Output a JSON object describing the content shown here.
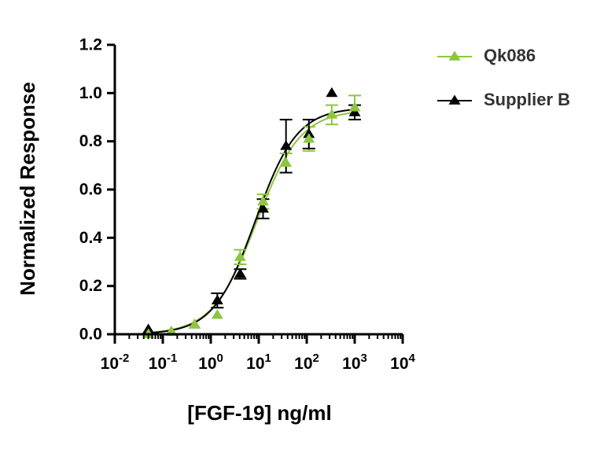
{
  "chart_data": {
    "type": "scatter",
    "title": "",
    "xlabel": "[FGF-19] ng/ml",
    "ylabel": "Normalized Response",
    "xscale": "log",
    "xlim": [
      0.01,
      10000
    ],
    "ylim": [
      0,
      1.2
    ],
    "grid": false,
    "legend_position": "top-right",
    "x_ticks": [
      {
        "value": 0.01,
        "base": "10",
        "exp": "-2"
      },
      {
        "value": 0.1,
        "base": "10",
        "exp": "-1"
      },
      {
        "value": 1,
        "base": "10",
        "exp": "0"
      },
      {
        "value": 10,
        "base": "10",
        "exp": "1"
      },
      {
        "value": 100,
        "base": "10",
        "exp": "2"
      },
      {
        "value": 1000,
        "base": "10",
        "exp": "3"
      },
      {
        "value": 10000,
        "base": "10",
        "exp": "4"
      }
    ],
    "y_ticks": [
      {
        "value": 0.0,
        "label": "0.0"
      },
      {
        "value": 0.2,
        "label": "0.2"
      },
      {
        "value": 0.4,
        "label": "0.4"
      },
      {
        "value": 0.6,
        "label": "0.6"
      },
      {
        "value": 0.8,
        "label": "0.8"
      },
      {
        "value": 1.0,
        "label": "1.0"
      },
      {
        "value": 1.2,
        "label": "1.2"
      }
    ],
    "series": [
      {
        "name": "Qk086",
        "color": "#8dc63f",
        "marker": "triangle",
        "fit": {
          "bottom": 0.0,
          "top": 0.93,
          "ec50": 9.0,
          "hill": 0.95
        },
        "points": [
          {
            "x": 0.05,
            "y": 0.0,
            "err": 0.0
          },
          {
            "x": 0.15,
            "y": 0.01,
            "err": 0.0
          },
          {
            "x": 0.46,
            "y": 0.04,
            "err": 0.0
          },
          {
            "x": 1.37,
            "y": 0.08,
            "err": 0.0
          },
          {
            "x": 4.1,
            "y": 0.32,
            "err": 0.03
          },
          {
            "x": 12.3,
            "y": 0.55,
            "err": 0.03
          },
          {
            "x": 37,
            "y": 0.71,
            "err": 0.04
          },
          {
            "x": 111,
            "y": 0.81,
            "err": 0.05
          },
          {
            "x": 333,
            "y": 0.91,
            "err": 0.04
          },
          {
            "x": 1000,
            "y": 0.94,
            "err": 0.05
          }
        ]
      },
      {
        "name": "Supplier B",
        "color": "#000000",
        "marker": "triangle",
        "fit": {
          "bottom": 0.0,
          "top": 0.94,
          "ec50": 8.5,
          "hill": 1.0
        },
        "points": [
          {
            "x": 0.05,
            "y": 0.02,
            "err": 0.0
          },
          {
            "x": 0.15,
            "y": 0.01,
            "err": 0.0
          },
          {
            "x": 0.46,
            "y": 0.04,
            "err": 0.0
          },
          {
            "x": 1.37,
            "y": 0.14,
            "err": 0.03
          },
          {
            "x": 4.1,
            "y": 0.25,
            "err": 0.02
          },
          {
            "x": 12.3,
            "y": 0.52,
            "err": 0.04
          },
          {
            "x": 37,
            "y": 0.78,
            "err": 0.11
          },
          {
            "x": 111,
            "y": 0.83,
            "err": 0.06
          },
          {
            "x": 333,
            "y": 1.0,
            "err": 0.0
          },
          {
            "x": 1000,
            "y": 0.92,
            "err": 0.03
          }
        ]
      }
    ]
  }
}
